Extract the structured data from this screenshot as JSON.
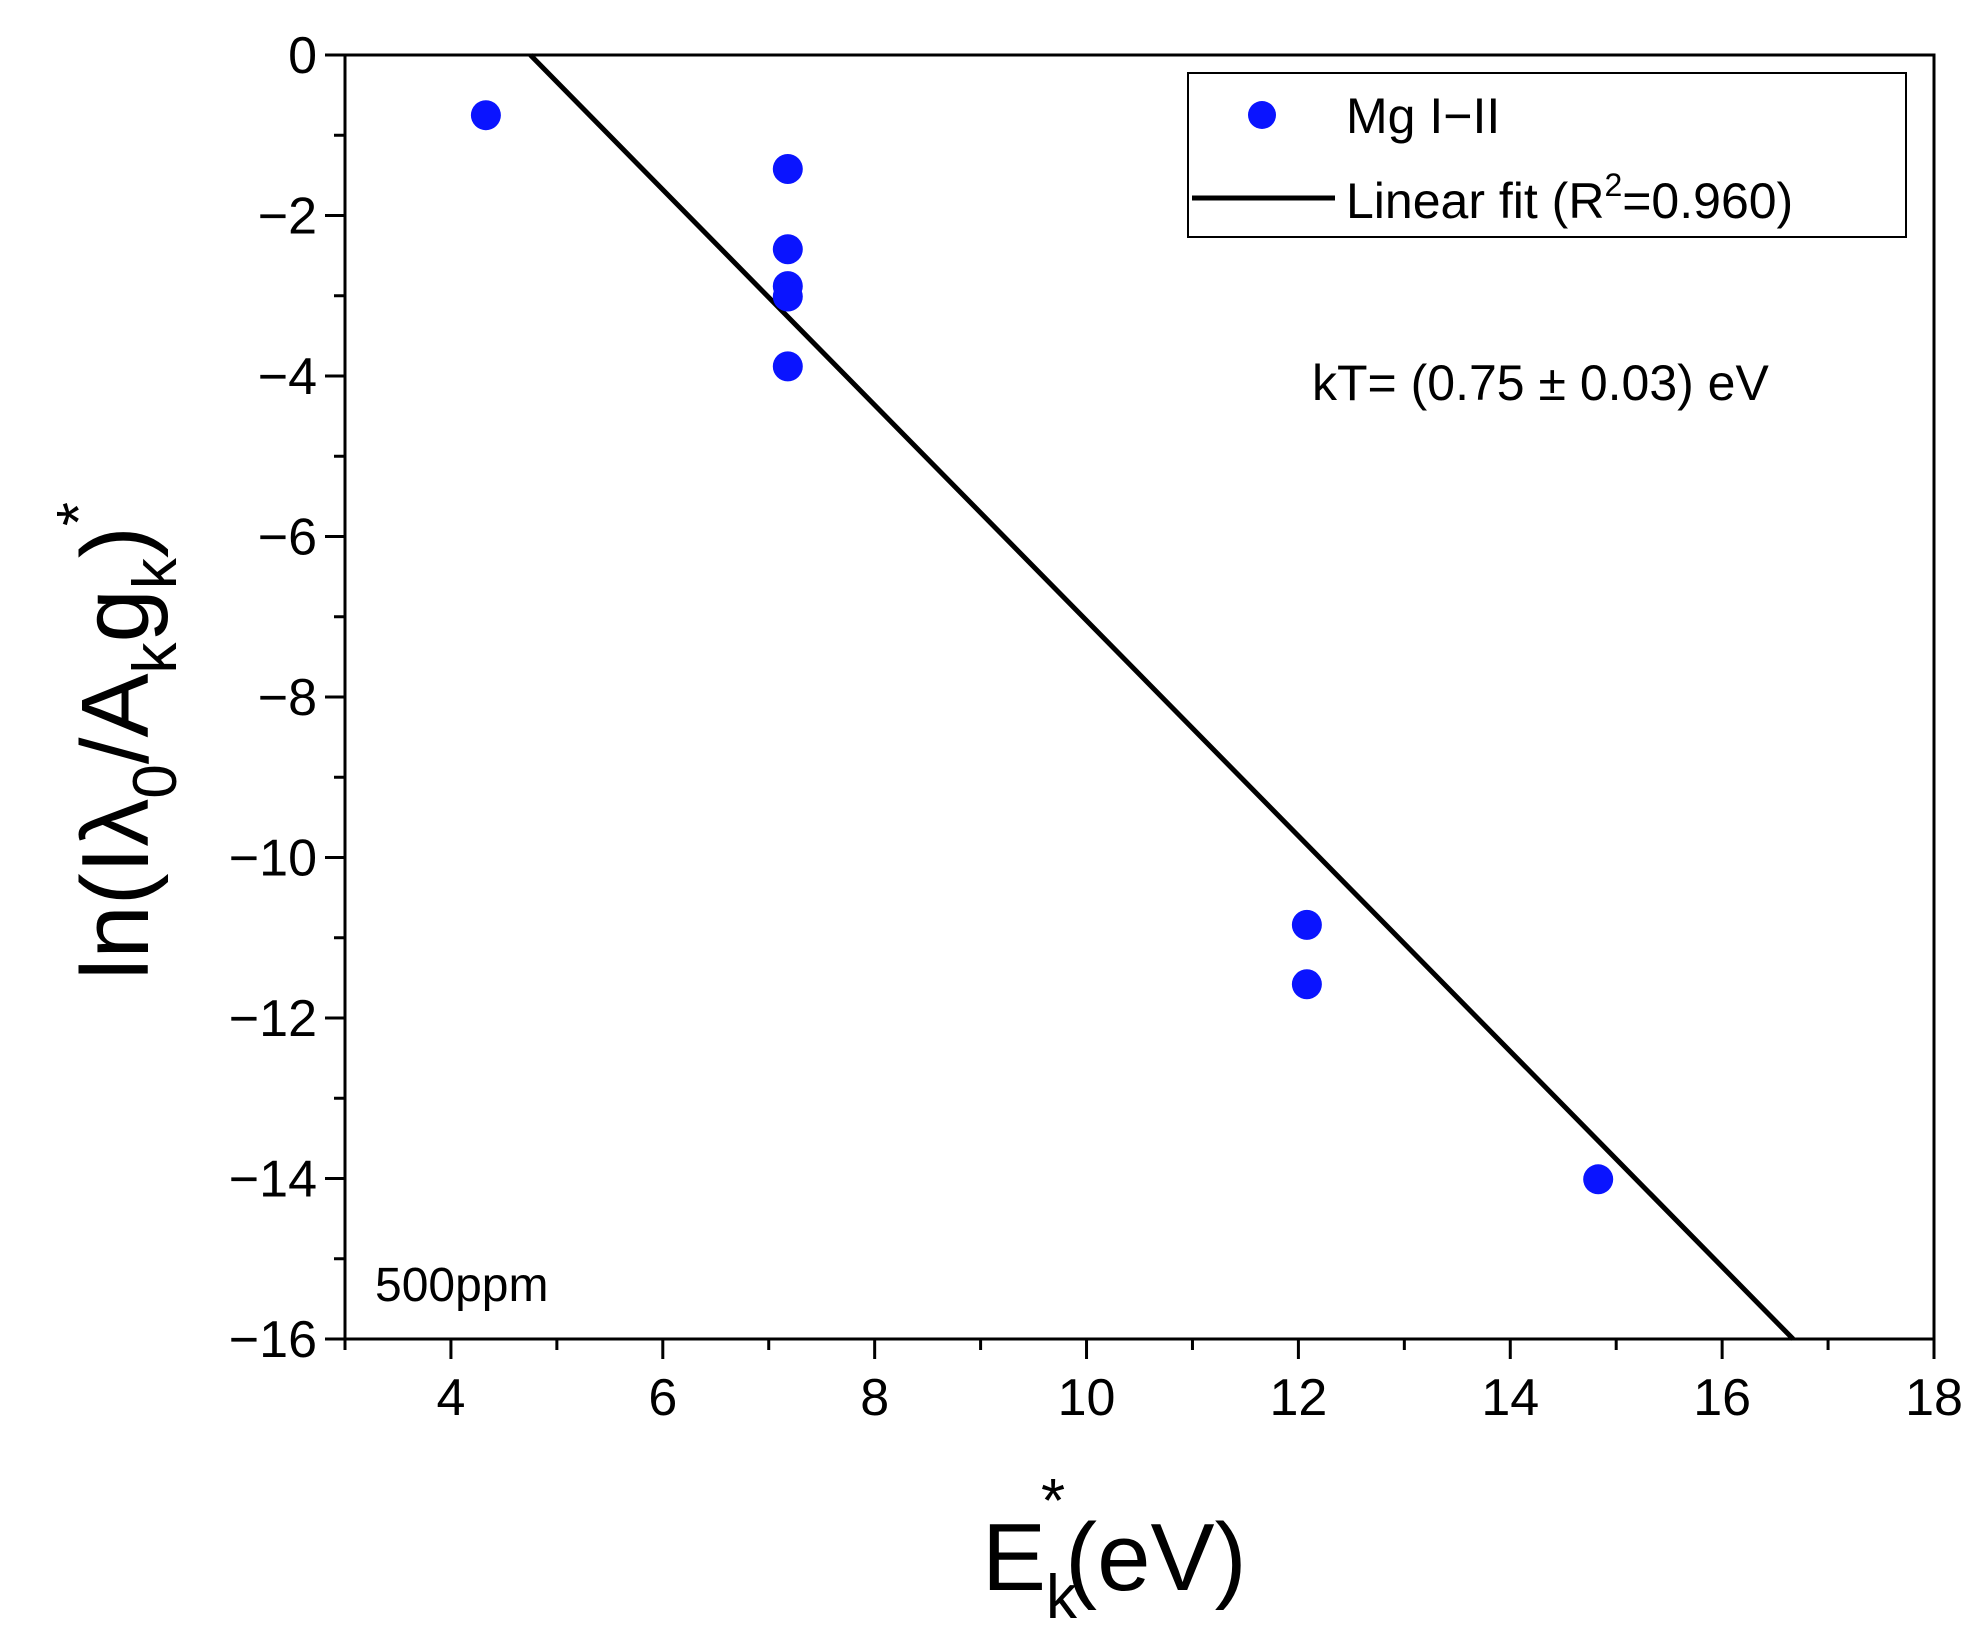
{
  "chart_data": {
    "type": "scatter",
    "xlabel": {
      "main": "E",
      "sub": "k",
      "sup": "*",
      "rest": "(eV)"
    },
    "ylabel": {
      "p1": "ln(I",
      "lambda": "λ",
      "sub0": "0",
      "p2": "/A",
      "subk1": "k",
      "p3": "g",
      "subk2": "k",
      "p4": ")",
      "sup": "*"
    },
    "xlim": [
      3,
      18
    ],
    "ylim": [
      -16,
      0
    ],
    "xticks": [
      4,
      6,
      8,
      10,
      12,
      14,
      16,
      18
    ],
    "xtick_labels": [
      "4",
      "6",
      "8",
      "10",
      "12",
      "14",
      "16",
      "18"
    ],
    "yticks": [
      0,
      -2,
      -4,
      -6,
      -8,
      -10,
      -12,
      -14,
      -16
    ],
    "ytick_labels": [
      "0",
      "−2",
      "−4",
      "−6",
      "−8",
      "−10",
      "−12",
      "−14",
      "−16"
    ],
    "series": [
      {
        "name": "Mg I−II",
        "kind": "scatter",
        "color": "#0a14ff",
        "points": [
          {
            "x": 4.33,
            "y": -0.75
          },
          {
            "x": 7.18,
            "y": -1.42
          },
          {
            "x": 7.18,
            "y": -2.42
          },
          {
            "x": 7.18,
            "y": -2.88
          },
          {
            "x": 7.18,
            "y": -3.01
          },
          {
            "x": 7.18,
            "y": -3.88
          },
          {
            "x": 12.08,
            "y": -10.84
          },
          {
            "x": 12.08,
            "y": -11.58
          },
          {
            "x": 14.83,
            "y": -14.01
          }
        ]
      },
      {
        "name": "Linear fit",
        "kind": "line",
        "color": "#000000",
        "x": [
          4.75,
          16.67
        ],
        "y": [
          0,
          -16
        ]
      }
    ],
    "legend": {
      "placement": "top-right",
      "entries": [
        {
          "label": "Mg I−II"
        },
        {
          "label_pre": "Linear fit (R",
          "label_sup": "2",
          "label_post": "=0.960)"
        }
      ]
    },
    "annotations": {
      "kt": "kT= (0.75 ± 0.03) eV",
      "concentration": "500ppm"
    }
  }
}
